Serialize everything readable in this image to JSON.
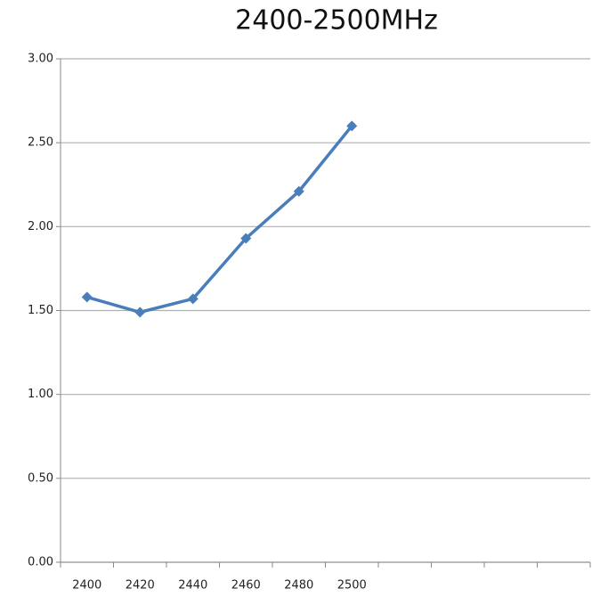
{
  "chart_data": {
    "type": "line",
    "title": "2400-2500MHz",
    "categories": [
      "2400",
      "2420",
      "2440",
      "2460",
      "2480",
      "2500",
      null,
      null,
      null,
      null
    ],
    "series": [
      {
        "name": "2400-2500MHz",
        "color": "#4a7ebb",
        "values": [
          1.58,
          1.49,
          1.57,
          1.93,
          2.21,
          2.6,
          null,
          null,
          null,
          null
        ]
      }
    ],
    "ylim": [
      0,
      3
    ],
    "yticks": [
      {
        "value": 0,
        "label": "0.00"
      },
      {
        "value": 0.5,
        "label": "0.50"
      },
      {
        "value": 1,
        "label": "1.00"
      },
      {
        "value": 1.5,
        "label": "1.50"
      },
      {
        "value": 2,
        "label": "2.00"
      },
      {
        "value": 2.5,
        "label": "2.50"
      },
      {
        "value": 3,
        "label": "3.00"
      }
    ],
    "grid": true
  }
}
